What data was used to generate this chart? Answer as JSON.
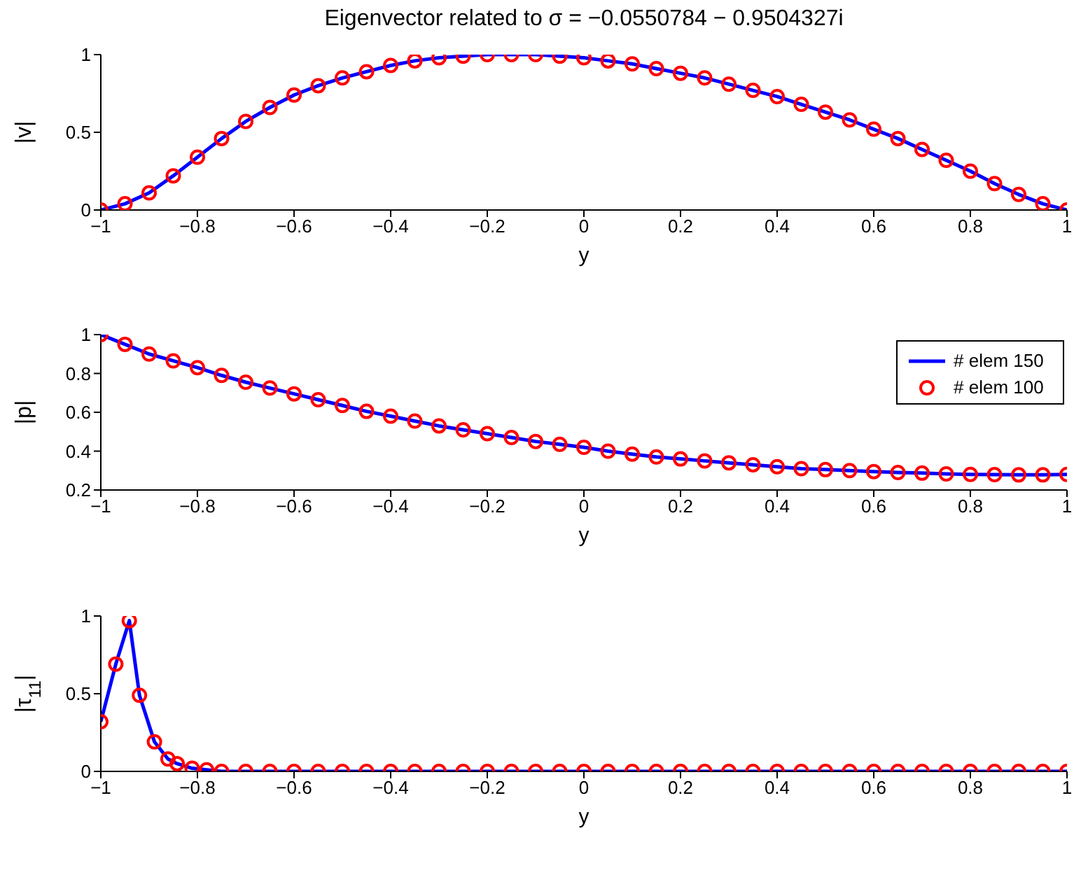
{
  "chart_data": [
    {
      "type": "line",
      "title": "Eigenvector related to σ = −0.0550784 − 0.9504327i",
      "xlabel": "y",
      "ylabel": "|v|",
      "xlim": [
        -1,
        1
      ],
      "xticks": [
        -1,
        -0.8,
        -0.6,
        -0.4,
        -0.2,
        0,
        0.2,
        0.4,
        0.6,
        0.8,
        1
      ],
      "ylim": [
        0,
        1
      ],
      "yticks": [
        0,
        0.5,
        1
      ],
      "x": [
        -1,
        -0.95,
        -0.9,
        -0.85,
        -0.8,
        -0.75,
        -0.7,
        -0.65,
        -0.6,
        -0.55,
        -0.5,
        -0.45,
        -0.4,
        -0.35,
        -0.3,
        -0.25,
        -0.2,
        -0.15,
        -0.1,
        -0.05,
        0,
        0.05,
        0.1,
        0.15,
        0.2,
        0.25,
        0.3,
        0.35,
        0.4,
        0.45,
        0.5,
        0.55,
        0.6,
        0.65,
        0.7,
        0.75,
        0.8,
        0.85,
        0.9,
        0.95,
        1
      ],
      "series": [
        {
          "color": "#0000ff",
          "marker": "none",
          "values": [
            0,
            0.04,
            0.11,
            0.22,
            0.34,
            0.46,
            0.57,
            0.66,
            0.74,
            0.8,
            0.85,
            0.89,
            0.93,
            0.96,
            0.98,
            0.99,
            1,
            1,
            1,
            0.99,
            0.98,
            0.96,
            0.94,
            0.91,
            0.88,
            0.85,
            0.81,
            0.77,
            0.73,
            0.68,
            0.63,
            0.58,
            0.52,
            0.46,
            0.39,
            0.32,
            0.25,
            0.17,
            0.1,
            0.04,
            0
          ]
        },
        {
          "type": "scatter",
          "color": "#ff0000",
          "marker": "circle",
          "values": [
            0,
            0.04,
            0.11,
            0.22,
            0.34,
            0.46,
            0.57,
            0.66,
            0.74,
            0.8,
            0.85,
            0.89,
            0.93,
            0.96,
            0.98,
            0.99,
            1,
            1,
            1,
            0.99,
            0.98,
            0.96,
            0.94,
            0.91,
            0.88,
            0.85,
            0.81,
            0.77,
            0.73,
            0.68,
            0.63,
            0.58,
            0.52,
            0.46,
            0.39,
            0.32,
            0.25,
            0.17,
            0.1,
            0.04,
            0
          ]
        }
      ]
    },
    {
      "type": "line",
      "xlabel": "y",
      "ylabel": "|p|",
      "xlim": [
        -1,
        1
      ],
      "xticks": [
        -1,
        -0.8,
        -0.6,
        -0.4,
        -0.2,
        0,
        0.2,
        0.4,
        0.6,
        0.8,
        1
      ],
      "ylim": [
        0.2,
        1
      ],
      "yticks": [
        0.2,
        0.4,
        0.6,
        0.8,
        1
      ],
      "legend": "top right",
      "x": [
        -1,
        -0.95,
        -0.9,
        -0.85,
        -0.8,
        -0.75,
        -0.7,
        -0.65,
        -0.6,
        -0.55,
        -0.5,
        -0.45,
        -0.4,
        -0.35,
        -0.3,
        -0.25,
        -0.2,
        -0.15,
        -0.1,
        -0.05,
        0,
        0.05,
        0.1,
        0.15,
        0.2,
        0.25,
        0.3,
        0.35,
        0.4,
        0.45,
        0.5,
        0.55,
        0.6,
        0.65,
        0.7,
        0.75,
        0.8,
        0.85,
        0.9,
        0.95,
        1
      ],
      "series": [
        {
          "name": "# elem 150",
          "color": "#0000ff",
          "marker": "none",
          "values": [
            1,
            0.95,
            0.9,
            0.865,
            0.83,
            0.79,
            0.755,
            0.725,
            0.695,
            0.665,
            0.635,
            0.605,
            0.58,
            0.555,
            0.53,
            0.51,
            0.49,
            0.47,
            0.45,
            0.435,
            0.42,
            0.4,
            0.385,
            0.37,
            0.36,
            0.35,
            0.34,
            0.33,
            0.32,
            0.31,
            0.305,
            0.3,
            0.295,
            0.29,
            0.287,
            0.283,
            0.28,
            0.279,
            0.278,
            0.278,
            0.28
          ]
        },
        {
          "name": "# elem 100",
          "type": "scatter",
          "color": "#ff0000",
          "marker": "circle",
          "values": [
            1,
            0.95,
            0.9,
            0.865,
            0.83,
            0.79,
            0.755,
            0.725,
            0.695,
            0.665,
            0.635,
            0.605,
            0.58,
            0.555,
            0.53,
            0.51,
            0.49,
            0.47,
            0.45,
            0.435,
            0.42,
            0.4,
            0.385,
            0.37,
            0.36,
            0.35,
            0.34,
            0.33,
            0.32,
            0.31,
            0.305,
            0.3,
            0.295,
            0.29,
            0.287,
            0.283,
            0.28,
            0.279,
            0.278,
            0.278,
            0.28
          ]
        }
      ]
    },
    {
      "type": "line",
      "xlabel": "y",
      "ylabel": "|τ$_{11}$|",
      "xlim": [
        -1,
        1
      ],
      "xticks": [
        -1,
        -0.8,
        -0.6,
        -0.4,
        -0.2,
        0,
        0.2,
        0.4,
        0.6,
        0.8,
        1
      ],
      "ylim": [
        0,
        1
      ],
      "yticks": [
        0,
        0.5,
        1
      ],
      "x": [
        -1,
        -0.969,
        -0.941,
        -0.92,
        -0.889,
        -0.861,
        -0.842,
        -0.811,
        -0.781,
        -0.75,
        -0.7,
        -0.65,
        -0.6,
        -0.55,
        -0.5,
        -0.45,
        -0.4,
        -0.35,
        -0.3,
        -0.25,
        -0.2,
        -0.15,
        -0.1,
        -0.05,
        0,
        0.05,
        0.1,
        0.15,
        0.2,
        0.25,
        0.3,
        0.35,
        0.4,
        0.45,
        0.5,
        0.55,
        0.6,
        0.65,
        0.7,
        0.75,
        0.8,
        0.85,
        0.9,
        0.95,
        1
      ],
      "series": [
        {
          "color": "#0000ff",
          "marker": "none",
          "values": [
            0.32,
            0.69,
            0.97,
            0.49,
            0.19,
            0.08,
            0.05,
            0.02,
            0.01,
            0,
            0,
            0,
            0,
            0,
            0,
            0,
            0,
            0,
            0,
            0,
            0,
            0,
            0,
            0,
            0,
            0,
            0,
            0,
            0,
            0,
            0,
            0,
            0,
            0,
            0,
            0,
            0,
            0,
            0,
            0,
            0,
            0,
            0,
            0,
            0
          ]
        },
        {
          "type": "scatter",
          "color": "#ff0000",
          "marker": "circle",
          "values": [
            0.32,
            0.69,
            0.97,
            0.49,
            0.19,
            0.08,
            0.05,
            0.02,
            0.01,
            0,
            0,
            0,
            0,
            0,
            0,
            0,
            0,
            0,
            0,
            0,
            0,
            0,
            0,
            0,
            0,
            0,
            0,
            0,
            0,
            0,
            0,
            0,
            0,
            0,
            0,
            0,
            0,
            0,
            0,
            0,
            0,
            0,
            0,
            0,
            0
          ]
        }
      ]
    }
  ]
}
